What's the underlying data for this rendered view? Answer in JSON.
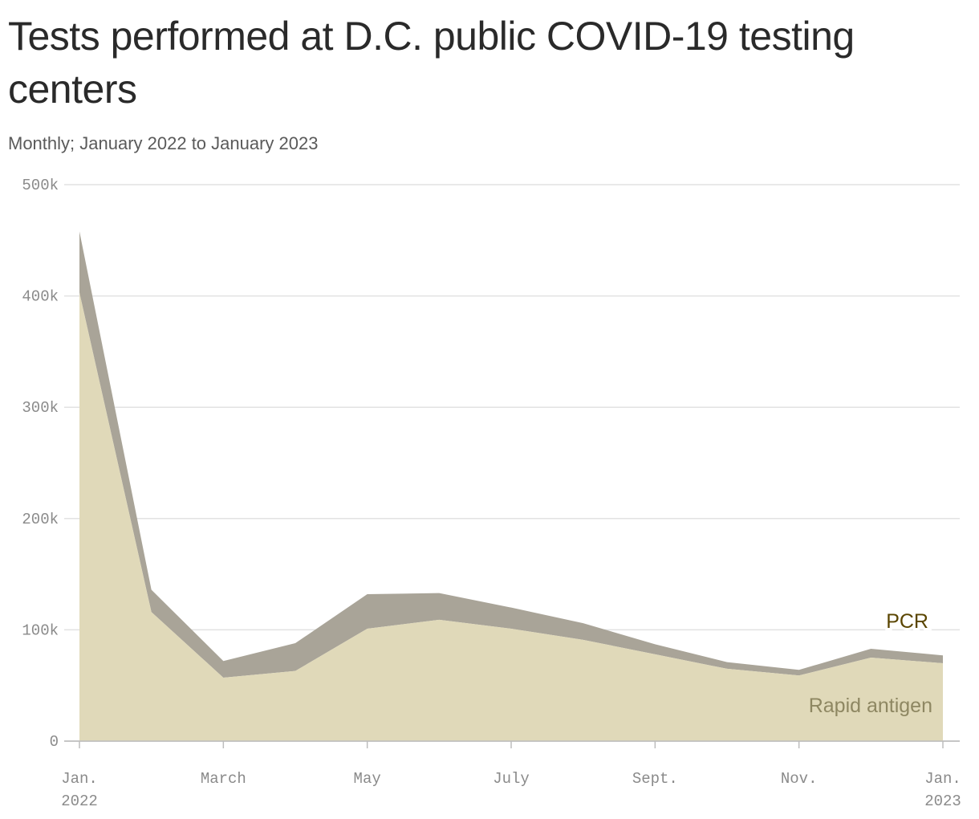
{
  "title": "Tests performed at D.C. public COVID-19 testing centers",
  "subtitle": "Monthly; January 2022 to January 2023",
  "colors": {
    "rapid_antigen": "#e0d9b9",
    "pcr": "#a9a498",
    "pcr_label": "#5a4500",
    "rapid_label": "#8e8762",
    "grid": "#e2e2e2",
    "axis": "#bdbdbd"
  },
  "chart_data": {
    "type": "area",
    "stacked": true,
    "x": [
      "2022-01",
      "2022-02",
      "2022-03",
      "2022-04",
      "2022-05",
      "2022-06",
      "2022-07",
      "2022-08",
      "2022-09",
      "2022-10",
      "2022-11",
      "2022-12",
      "2023-01"
    ],
    "series": [
      {
        "name": "Rapid antigen",
        "values": [
          403000,
          116000,
          57000,
          63000,
          101000,
          109000,
          101000,
          91000,
          78000,
          65000,
          59000,
          75000,
          70000
        ]
      },
      {
        "name": "PCR",
        "values": [
          55000,
          20000,
          15000,
          25000,
          31000,
          24000,
          19000,
          15000,
          9000,
          6000,
          5000,
          8000,
          7000
        ]
      }
    ],
    "ylim": [
      0,
      500000
    ],
    "y_ticks": [
      {
        "value": 0,
        "label": "0"
      },
      {
        "value": 100000,
        "label": "100k"
      },
      {
        "value": 200000,
        "label": "200k"
      },
      {
        "value": 300000,
        "label": "300k"
      },
      {
        "value": 400000,
        "label": "400k"
      },
      {
        "value": 500000,
        "label": "500k"
      }
    ],
    "x_ticks": [
      {
        "index": 0,
        "label": "Jan.",
        "label2": "2022"
      },
      {
        "index": 2,
        "label": "March",
        "label2": ""
      },
      {
        "index": 4,
        "label": "May",
        "label2": ""
      },
      {
        "index": 6,
        "label": "July",
        "label2": ""
      },
      {
        "index": 8,
        "label": "Sept.",
        "label2": ""
      },
      {
        "index": 10,
        "label": "Nov.",
        "label2": ""
      },
      {
        "index": 12,
        "label": "Jan.",
        "label2": "2023"
      }
    ],
    "grid": true,
    "legend": "inline labels near right end"
  }
}
